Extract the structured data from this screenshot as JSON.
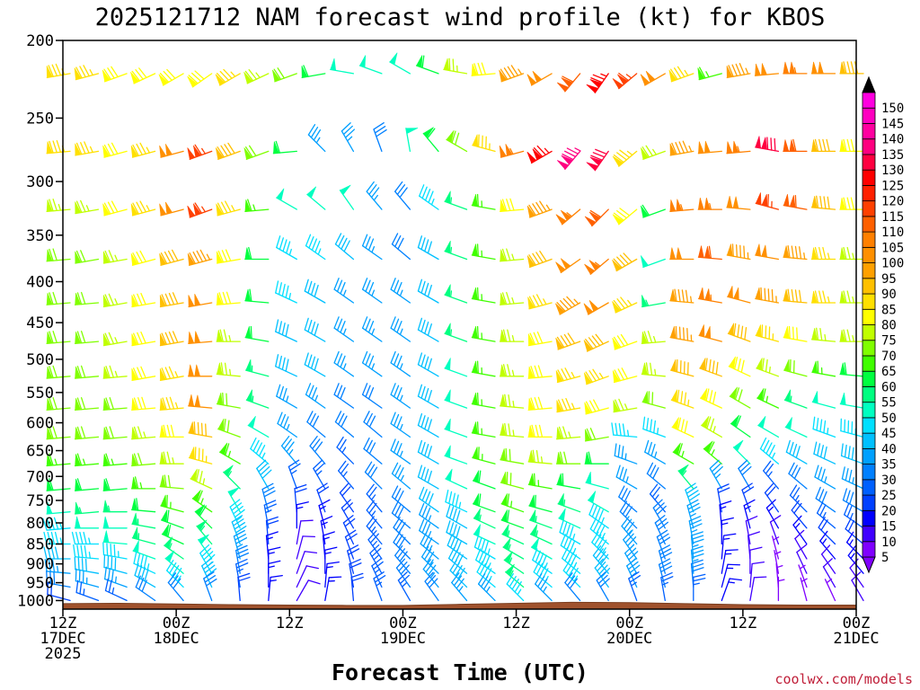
{
  "chart_data": {
    "type": "wind-barb profile",
    "title": "2025121712 NAM forecast wind profile (kt) for KBOS",
    "xlabel": "Forecast Time (UTC)",
    "ylabel": "",
    "credit": "coolwx.com/models",
    "y_axis": {
      "range": [
        1025,
        200
      ],
      "ticks": [
        200,
        250,
        300,
        350,
        400,
        450,
        500,
        550,
        600,
        650,
        700,
        750,
        800,
        850,
        900,
        950,
        1000
      ],
      "tick_labels": [
        "200",
        "250",
        "300",
        "350",
        "400",
        "450",
        "500",
        "550",
        "600",
        "650",
        "700",
        "750",
        "800",
        "850",
        "900",
        "950",
        "1000"
      ],
      "scale": "log-pressure"
    },
    "x_axis": {
      "range_hours": [
        0,
        84
      ],
      "ticks": [
        {
          "hour": 0,
          "lines": [
            "12Z",
            "17DEC",
            "2025"
          ]
        },
        {
          "hour": 12,
          "lines": [
            "00Z",
            "18DEC"
          ]
        },
        {
          "hour": 24,
          "lines": [
            "12Z"
          ]
        },
        {
          "hour": 36,
          "lines": [
            "00Z",
            "19DEC"
          ]
        },
        {
          "hour": 48,
          "lines": [
            "12Z"
          ]
        },
        {
          "hour": 60,
          "lines": [
            "00Z",
            "20DEC"
          ]
        },
        {
          "hour": 72,
          "lines": [
            "12Z"
          ]
        },
        {
          "hour": 84,
          "lines": [
            "00Z",
            "21DEC"
          ]
        }
      ]
    },
    "colorbar": {
      "levels": [
        "5",
        "10",
        "15",
        "20",
        "25",
        "30",
        "35",
        "40",
        "45",
        "50",
        "55",
        "60",
        "65",
        "70",
        "75",
        "80",
        "85",
        "90",
        "95",
        "100",
        "105",
        "110",
        "115",
        "120",
        "125",
        "130",
        "135",
        "140",
        "145",
        "150"
      ],
      "colors": [
        "#8000ff",
        "#4000ff",
        "#0000ff",
        "#0040ff",
        "#0060ff",
        "#0080ff",
        "#00a0ff",
        "#00c0ff",
        "#00e0ff",
        "#00ffc0",
        "#00ff80",
        "#00ff40",
        "#40ff00",
        "#80ff00",
        "#c0ff00",
        "#ffff00",
        "#ffe000",
        "#ffc000",
        "#ffa000",
        "#ff9000",
        "#ff8000",
        "#ff6000",
        "#ff4000",
        "#ff2000",
        "#ff0000",
        "#ff0040",
        "#ff0080",
        "#ff00a0",
        "#ff00c0",
        "#ff00e0"
      ]
    },
    "pressure_levels": [
      220,
      275,
      325,
      375,
      425,
      475,
      525,
      575,
      625,
      675,
      725,
      775,
      812,
      850,
      887,
      925,
      962,
      1000
    ],
    "time_hours": [
      0,
      3,
      6,
      9,
      12,
      15,
      18,
      21,
      24,
      27,
      30,
      33,
      36,
      39,
      42,
      45,
      48,
      51,
      54,
      57,
      60,
      63,
      66,
      69,
      72,
      75,
      78,
      81,
      84
    ],
    "wind_speed_kt": [
      [
        85,
        85,
        80,
        80,
        80,
        80,
        85,
        75,
        70,
        60,
        50,
        50,
        50,
        60,
        75,
        80,
        95,
        100,
        110,
        125,
        115,
        100,
        85,
        65,
        95,
        100,
        105,
        100,
        90
      ],
      [
        85,
        85,
        80,
        85,
        100,
        115,
        90,
        70,
        60,
        35,
        35,
        30,
        50,
        60,
        70,
        85,
        105,
        125,
        135,
        130,
        85,
        75,
        95,
        100,
        105,
        130,
        110,
        90,
        80
      ],
      [
        75,
        75,
        80,
        85,
        100,
        115,
        85,
        65,
        50,
        50,
        50,
        35,
        30,
        45,
        55,
        65,
        80,
        95,
        105,
        110,
        80,
        60,
        105,
        105,
        100,
        115,
        110,
        90,
        80
      ],
      [
        70,
        70,
        75,
        80,
        90,
        95,
        80,
        60,
        45,
        45,
        40,
        35,
        30,
        40,
        55,
        65,
        75,
        90,
        100,
        105,
        90,
        50,
        100,
        110,
        95,
        100,
        95,
        85,
        75
      ],
      [
        70,
        70,
        75,
        80,
        90,
        100,
        80,
        60,
        45,
        40,
        35,
        35,
        35,
        40,
        55,
        65,
        75,
        85,
        95,
        100,
        85,
        55,
        95,
        105,
        100,
        95,
        90,
        85,
        75
      ],
      [
        70,
        70,
        75,
        80,
        90,
        100,
        75,
        60,
        40,
        40,
        35,
        35,
        35,
        40,
        55,
        65,
        75,
        80,
        90,
        90,
        80,
        75,
        95,
        100,
        90,
        85,
        80,
        75,
        75
      ],
      [
        70,
        70,
        75,
        80,
        85,
        100,
        75,
        55,
        40,
        40,
        35,
        35,
        35,
        40,
        50,
        65,
        75,
        80,
        85,
        85,
        80,
        75,
        90,
        90,
        80,
        75,
        70,
        65,
        60
      ],
      [
        70,
        70,
        70,
        80,
        85,
        100,
        70,
        55,
        35,
        35,
        30,
        30,
        35,
        40,
        50,
        65,
        75,
        80,
        85,
        80,
        75,
        70,
        85,
        80,
        70,
        65,
        55,
        50,
        50
      ],
      [
        70,
        70,
        70,
        75,
        80,
        90,
        70,
        50,
        35,
        30,
        30,
        30,
        35,
        40,
        50,
        65,
        75,
        80,
        75,
        70,
        45,
        45,
        80,
        75,
        60,
        50,
        50,
        45,
        45
      ],
      [
        65,
        65,
        65,
        70,
        75,
        85,
        65,
        45,
        35,
        30,
        25,
        30,
        35,
        40,
        50,
        65,
        70,
        75,
        70,
        60,
        35,
        35,
        65,
        65,
        50,
        45,
        40,
        40,
        40
      ],
      [
        60,
        60,
        60,
        65,
        70,
        75,
        55,
        40,
        25,
        25,
        25,
        30,
        35,
        40,
        50,
        60,
        70,
        65,
        60,
        50,
        35,
        30,
        55,
        35,
        30,
        25,
        30,
        35,
        35
      ],
      [
        50,
        55,
        55,
        60,
        65,
        65,
        50,
        30,
        20,
        20,
        20,
        25,
        30,
        40,
        45,
        60,
        65,
        60,
        55,
        50,
        30,
        25,
        40,
        20,
        20,
        20,
        25,
        30,
        30
      ],
      [
        45,
        50,
        50,
        55,
        60,
        60,
        45,
        25,
        15,
        15,
        20,
        25,
        30,
        35,
        40,
        55,
        60,
        55,
        50,
        45,
        30,
        30,
        35,
        15,
        15,
        15,
        20,
        25,
        25
      ],
      [
        45,
        45,
        50,
        55,
        60,
        55,
        40,
        20,
        10,
        15,
        20,
        25,
        30,
        35,
        40,
        50,
        55,
        55,
        45,
        45,
        35,
        30,
        35,
        15,
        10,
        10,
        15,
        20,
        20
      ],
      [
        40,
        45,
        45,
        50,
        55,
        50,
        35,
        15,
        10,
        15,
        20,
        25,
        30,
        35,
        40,
        45,
        55,
        50,
        45,
        45,
        35,
        30,
        35,
        15,
        10,
        5,
        10,
        15,
        15
      ],
      [
        35,
        40,
        40,
        45,
        50,
        45,
        30,
        15,
        10,
        15,
        20,
        25,
        30,
        35,
        40,
        45,
        55,
        45,
        45,
        40,
        35,
        30,
        35,
        15,
        10,
        5,
        10,
        10,
        15
      ],
      [
        30,
        35,
        35,
        40,
        45,
        40,
        25,
        15,
        10,
        15,
        20,
        25,
        30,
        35,
        40,
        45,
        55,
        45,
        45,
        40,
        35,
        30,
        30,
        15,
        10,
        5,
        5,
        10,
        10
      ],
      [
        20,
        25,
        25,
        30,
        30,
        30,
        20,
        15,
        10,
        15,
        20,
        25,
        25,
        30,
        35,
        35,
        45,
        35,
        30,
        30,
        25,
        25,
        25,
        15,
        10,
        5,
        5,
        5,
        10
      ]
    ],
    "wind_dir_deg": [
      [
        260,
        255,
        250,
        245,
        240,
        235,
        240,
        245,
        250,
        260,
        280,
        290,
        300,
        290,
        280,
        265,
        250,
        240,
        220,
        215,
        230,
        240,
        250,
        255,
        260,
        265,
        270,
        270,
        270
      ],
      [
        265,
        260,
        255,
        255,
        255,
        250,
        250,
        250,
        265,
        315,
        330,
        340,
        350,
        320,
        300,
        285,
        255,
        240,
        220,
        215,
        230,
        250,
        260,
        265,
        265,
        280,
        270,
        270,
        270
      ],
      [
        265,
        260,
        255,
        255,
        255,
        250,
        255,
        265,
        300,
        310,
        325,
        320,
        320,
        305,
        290,
        280,
        265,
        250,
        230,
        225,
        230,
        250,
        265,
        270,
        275,
        285,
        280,
        275,
        270
      ],
      [
        265,
        260,
        260,
        255,
        255,
        255,
        260,
        270,
        300,
        305,
        310,
        305,
        310,
        300,
        290,
        280,
        265,
        250,
        235,
        230,
        240,
        250,
        270,
        275,
        280,
        280,
        275,
        270,
        270
      ],
      [
        265,
        265,
        260,
        260,
        260,
        260,
        265,
        275,
        295,
        300,
        305,
        305,
        305,
        300,
        290,
        280,
        265,
        255,
        240,
        240,
        245,
        260,
        275,
        280,
        285,
        280,
        275,
        270,
        270
      ],
      [
        265,
        265,
        260,
        260,
        260,
        265,
        270,
        280,
        295,
        300,
        305,
        305,
        305,
        300,
        290,
        280,
        270,
        260,
        250,
        245,
        250,
        265,
        280,
        285,
        290,
        285,
        280,
        275,
        270
      ],
      [
        265,
        265,
        265,
        260,
        260,
        270,
        275,
        285,
        295,
        300,
        305,
        305,
        305,
        300,
        290,
        280,
        270,
        265,
        255,
        250,
        255,
        275,
        285,
        290,
        295,
        290,
        285,
        280,
        275
      ],
      [
        265,
        265,
        265,
        265,
        265,
        275,
        280,
        290,
        300,
        305,
        305,
        305,
        305,
        300,
        290,
        280,
        275,
        265,
        260,
        255,
        260,
        285,
        290,
        295,
        300,
        295,
        290,
        285,
        280
      ],
      [
        265,
        265,
        265,
        265,
        270,
        280,
        290,
        300,
        305,
        310,
        310,
        310,
        305,
        300,
        290,
        280,
        275,
        270,
        265,
        260,
        275,
        290,
        295,
        300,
        305,
        300,
        295,
        290,
        285
      ],
      [
        265,
        265,
        265,
        265,
        270,
        285,
        300,
        310,
        320,
        320,
        315,
        310,
        305,
        300,
        290,
        285,
        280,
        275,
        270,
        270,
        290,
        300,
        300,
        310,
        315,
        310,
        300,
        295,
        290
      ],
      [
        265,
        265,
        265,
        270,
        275,
        295,
        315,
        330,
        340,
        330,
        320,
        315,
        310,
        300,
        295,
        290,
        285,
        280,
        280,
        285,
        300,
        310,
        320,
        330,
        330,
        320,
        310,
        300,
        295
      ],
      [
        265,
        265,
        270,
        275,
        285,
        305,
        330,
        345,
        355,
        340,
        325,
        320,
        310,
        305,
        295,
        290,
        290,
        285,
        290,
        300,
        310,
        320,
        340,
        350,
        340,
        325,
        315,
        305,
        300
      ],
      [
        265,
        270,
        270,
        280,
        290,
        315,
        335,
        350,
        360,
        345,
        330,
        320,
        310,
        305,
        300,
        295,
        290,
        290,
        295,
        305,
        315,
        330,
        345,
        355,
        345,
        330,
        320,
        310,
        305
      ],
      [
        270,
        270,
        275,
        285,
        295,
        320,
        340,
        355,
        10,
        350,
        335,
        320,
        315,
        305,
        300,
        295,
        295,
        295,
        300,
        310,
        320,
        335,
        350,
        360,
        350,
        340,
        325,
        315,
        310
      ],
      [
        270,
        275,
        280,
        290,
        305,
        325,
        345,
        355,
        15,
        355,
        340,
        325,
        315,
        310,
        305,
        300,
        300,
        300,
        305,
        315,
        325,
        340,
        355,
        5,
        355,
        345,
        330,
        320,
        315
      ],
      [
        275,
        280,
        285,
        295,
        310,
        330,
        350,
        360,
        20,
        360,
        345,
        330,
        320,
        315,
        310,
        305,
        305,
        305,
        310,
        320,
        330,
        345,
        355,
        10,
        360,
        350,
        335,
        325,
        320
      ],
      [
        280,
        285,
        290,
        300,
        315,
        335,
        350,
        360,
        25,
        5,
        350,
        335,
        325,
        320,
        315,
        310,
        310,
        310,
        315,
        325,
        335,
        345,
        355,
        15,
        5,
        355,
        340,
        330,
        325
      ],
      [
        285,
        290,
        295,
        305,
        320,
        340,
        355,
        5,
        30,
        10,
        355,
        340,
        330,
        325,
        320,
        315,
        315,
        315,
        320,
        330,
        340,
        350,
        360,
        20,
        10,
        360,
        345,
        335,
        330
      ]
    ],
    "surface_pressure": [
      {
        "hour": 0,
        "mb": 1009
      },
      {
        "hour": 6,
        "mb": 1008
      },
      {
        "hour": 12,
        "mb": 1010
      },
      {
        "hour": 18,
        "mb": 1012
      },
      {
        "hour": 24,
        "mb": 1013
      },
      {
        "hour": 30,
        "mb": 1014
      },
      {
        "hour": 36,
        "mb": 1014
      },
      {
        "hour": 42,
        "mb": 1011
      },
      {
        "hour": 48,
        "mb": 1008
      },
      {
        "hour": 54,
        "mb": 1005
      },
      {
        "hour": 60,
        "mb": 1006
      },
      {
        "hour": 66,
        "mb": 1009
      },
      {
        "hour": 72,
        "mb": 1012
      },
      {
        "hour": 78,
        "mb": 1013
      },
      {
        "hour": 84,
        "mb": 1013
      }
    ]
  }
}
